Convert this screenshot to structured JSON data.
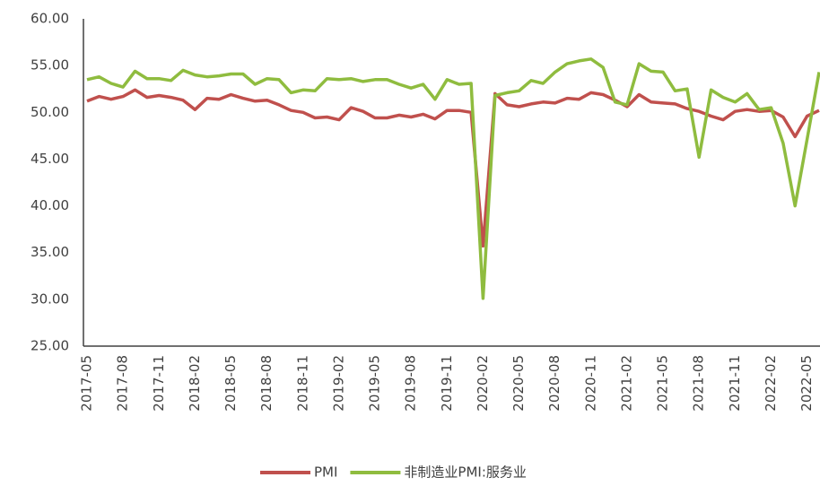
{
  "chart_data": {
    "type": "line",
    "categories": [
      "2017-05",
      null,
      null,
      "2017-08",
      null,
      null,
      "2017-11",
      null,
      null,
      "2018-02",
      null,
      null,
      "2018-05",
      null,
      null,
      "2018-08",
      null,
      null,
      "2018-11",
      null,
      null,
      "2019-02",
      null,
      null,
      "2019-05",
      null,
      null,
      "2019-08",
      null,
      null,
      "2019-11",
      null,
      null,
      "2020-02",
      null,
      null,
      "2020-05",
      null,
      null,
      "2020-08",
      null,
      null,
      "2020-11",
      null,
      null,
      "2021-02",
      null,
      null,
      "2021-05",
      null,
      null,
      "2021-08",
      null,
      null,
      "2021-11",
      null,
      null,
      "2022-02",
      null,
      null,
      "2022-05",
      null
    ],
    "series": [
      {
        "name": "PMI",
        "color": "#c0504d",
        "values": [
          51.2,
          51.7,
          51.4,
          51.7,
          52.4,
          51.6,
          51.8,
          51.6,
          51.3,
          50.3,
          51.5,
          51.4,
          51.9,
          51.5,
          51.2,
          51.3,
          50.8,
          50.2,
          50.0,
          49.4,
          49.5,
          49.2,
          50.5,
          50.1,
          49.4,
          49.4,
          49.7,
          49.5,
          49.8,
          49.3,
          50.2,
          50.2,
          50.0,
          35.7,
          52.0,
          50.8,
          50.6,
          50.9,
          51.1,
          51.0,
          51.5,
          51.4,
          52.1,
          51.9,
          51.3,
          50.6,
          51.9,
          51.1,
          51.0,
          50.9,
          50.4,
          50.1,
          49.6,
          49.2,
          50.1,
          50.3,
          50.1,
          50.2,
          49.5,
          47.4,
          49.6,
          50.2
        ]
      },
      {
        "name": "非制造业PMI:服务业",
        "color": "#8fbc3f",
        "values": [
          53.5,
          53.8,
          53.1,
          52.7,
          54.4,
          53.6,
          53.6,
          53.4,
          54.5,
          54.0,
          53.8,
          53.9,
          54.1,
          54.1,
          53.0,
          53.6,
          53.5,
          52.1,
          52.4,
          52.3,
          53.6,
          53.5,
          53.6,
          53.3,
          53.5,
          53.5,
          53.0,
          52.6,
          53.0,
          51.4,
          53.5,
          53.0,
          53.1,
          30.1,
          51.8,
          52.1,
          52.3,
          53.4,
          53.1,
          54.3,
          55.2,
          55.5,
          55.7,
          54.8,
          51.1,
          50.8,
          55.2,
          54.4,
          54.3,
          52.3,
          52.5,
          45.2,
          52.4,
          51.6,
          51.1,
          52.0,
          50.3,
          50.5,
          46.7,
          40.0,
          47.1,
          54.3
        ]
      }
    ],
    "ylim": [
      25,
      60
    ],
    "yticks": [
      {
        "value": 25,
        "label": "25.00"
      },
      {
        "value": 30,
        "label": "30.00"
      },
      {
        "value": 35,
        "label": "35.00"
      },
      {
        "value": 40,
        "label": "40.00"
      },
      {
        "value": 45,
        "label": "45.00"
      },
      {
        "value": 50,
        "label": "50.00"
      },
      {
        "value": 55,
        "label": "55.00"
      },
      {
        "value": 60,
        "label": "60.00"
      }
    ],
    "grid": false,
    "legend": "bottom"
  }
}
